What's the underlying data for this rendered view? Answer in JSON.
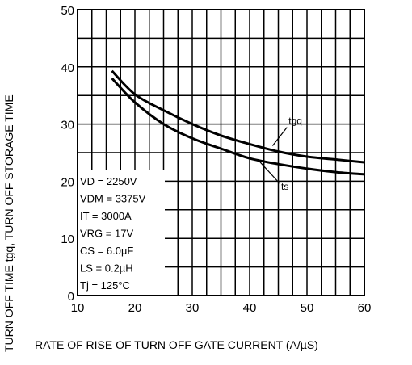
{
  "chart_data": {
    "type": "line",
    "xlabel": "RATE OF RISE OF TURN OFF GATE CURRENT  (A/µS)",
    "ylabel": "TURN OFF TIME  tgq,  TURN OFF STORAGE TIME",
    "xlim": [
      10,
      60
    ],
    "ylim": [
      0,
      50
    ],
    "x_ticks": [
      "10",
      "20",
      "30",
      "40",
      "50",
      "60"
    ],
    "y_ticks": [
      "0",
      "10",
      "20",
      "30",
      "40",
      "50"
    ],
    "grid": true,
    "x_grid_step": 2.5,
    "y_grid_step": 5,
    "series": [
      {
        "name": "tgq",
        "x": [
          16,
          20,
          25,
          30,
          35,
          40,
          45,
          50,
          55,
          60
        ],
        "values": [
          39.3,
          35.2,
          32.4,
          30.0,
          28.0,
          26.5,
          25.2,
          24.3,
          23.8,
          23.3
        ]
      },
      {
        "name": "ts",
        "x": [
          16,
          20,
          25,
          30,
          35,
          40,
          45,
          50,
          55,
          60
        ],
        "values": [
          38.0,
          33.8,
          30.0,
          27.5,
          25.7,
          24.0,
          23.0,
          22.2,
          21.6,
          21.2
        ]
      }
    ],
    "annotations": [
      {
        "label": "tgq",
        "x": 44,
        "y": 26.2,
        "tx": 46.8,
        "ty": 30.0
      },
      {
        "label": "ts",
        "x": 41.5,
        "y": 23.7,
        "tx": 45.5,
        "ty": 18.5
      }
    ],
    "conditions": [
      "VD = 2250V",
      "VDM = 3375V",
      "IT = 3000A",
      "VRG = 17V",
      "CS = 6.0µF",
      "LS = 0.2µH",
      "Tj = 125°C"
    ]
  }
}
